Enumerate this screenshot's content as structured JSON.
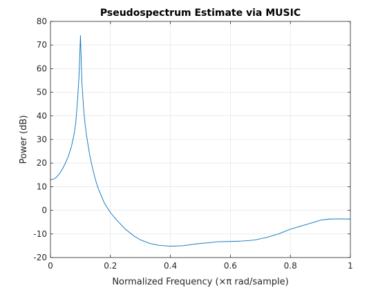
{
  "chart_data": {
    "type": "line",
    "title": "Pseudospectrum Estimate via MUSIC",
    "xlabel": "Normalized Frequency  (×π rad/sample)",
    "ylabel": "Power (dB)",
    "xlim": [
      0,
      1
    ],
    "ylim": [
      -20,
      80
    ],
    "xticks": [
      0,
      0.2,
      0.4,
      0.6,
      0.8,
      1
    ],
    "xtick_labels": [
      "0",
      "0.2",
      "0.4",
      "0.6",
      "0.8",
      "1"
    ],
    "yticks": [
      -20,
      -10,
      0,
      10,
      20,
      30,
      40,
      50,
      60,
      70,
      80
    ],
    "ytick_labels": [
      "-20",
      "-10",
      "0",
      "10",
      "20",
      "30",
      "40",
      "50",
      "60",
      "70",
      "80"
    ],
    "grid": true,
    "series": [
      {
        "color": "#0072bd",
        "x": [
          0,
          0.01,
          0.02,
          0.03,
          0.04,
          0.05,
          0.06,
          0.07,
          0.08,
          0.085,
          0.09,
          0.095,
          0.098,
          0.1,
          0.102,
          0.105,
          0.11,
          0.115,
          0.12,
          0.13,
          0.14,
          0.15,
          0.16,
          0.18,
          0.2,
          0.22,
          0.25,
          0.28,
          0.3,
          0.33,
          0.36,
          0.4,
          0.44,
          0.48,
          0.52,
          0.56,
          0.6,
          0.64,
          0.68,
          0.72,
          0.76,
          0.8,
          0.84,
          0.88,
          0.9,
          0.93,
          0.96,
          1.0
        ],
        "y": [
          13,
          13.2,
          14,
          15.5,
          17.5,
          20,
          23,
          27,
          33,
          38,
          46,
          56,
          66,
          74,
          66,
          54,
          44,
          37,
          32,
          24,
          18,
          13,
          9,
          3,
          -1,
          -4,
          -8,
          -11,
          -12.5,
          -14,
          -14.8,
          -15.2,
          -15,
          -14.3,
          -13.8,
          -13.3,
          -13.2,
          -13,
          -12.6,
          -11.5,
          -10,
          -8,
          -6.5,
          -5,
          -4.2,
          -3.7,
          -3.6,
          -3.7
        ]
      }
    ]
  }
}
